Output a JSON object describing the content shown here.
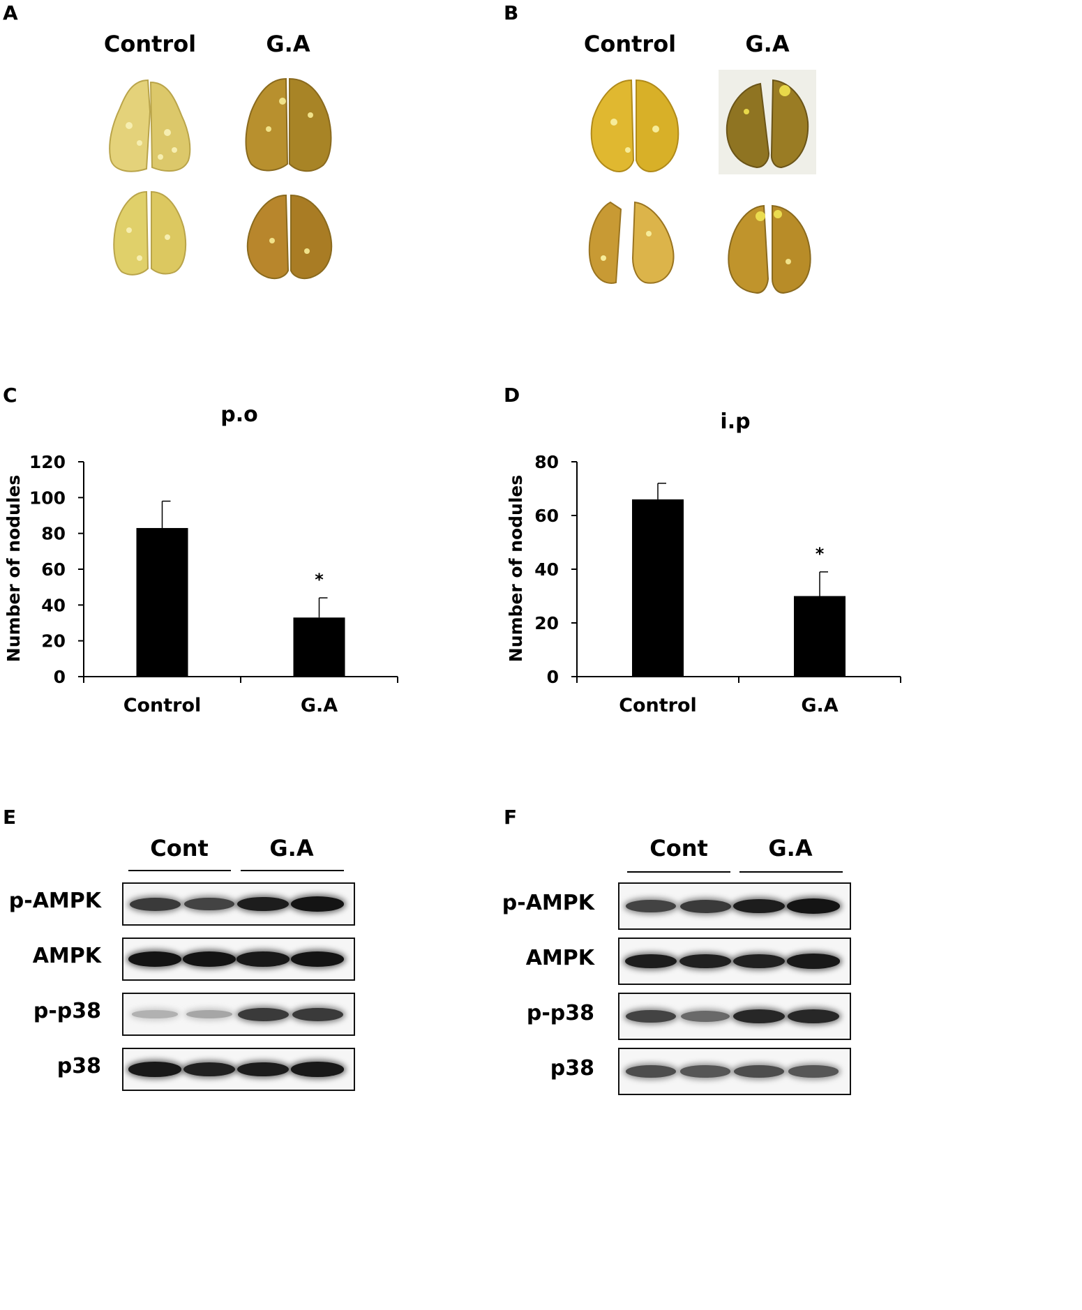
{
  "panels": {
    "A": {
      "letter": "A",
      "col1": "Control",
      "col2": "G.A"
    },
    "B": {
      "letter": "B",
      "col1": "Control",
      "col2": "G.A"
    },
    "C": {
      "letter": "C"
    },
    "D": {
      "letter": "D"
    },
    "E": {
      "letter": "E",
      "group1": "Cont",
      "group2": "G.A",
      "rows": [
        {
          "label": "p-AMPK",
          "intensity": [
            0.75,
            0.7,
            0.9,
            0.95
          ]
        },
        {
          "label": "AMPK",
          "intensity": [
            0.95,
            0.95,
            0.92,
            0.95
          ]
        },
        {
          "label": "p-p38",
          "intensity": [
            0.12,
            0.18,
            0.75,
            0.75
          ]
        },
        {
          "label": "p38",
          "intensity": [
            0.92,
            0.88,
            0.9,
            0.92
          ]
        }
      ]
    },
    "F": {
      "letter": "F",
      "group1": "Cont",
      "group2": "G.A",
      "rows": [
        {
          "label": "p-AMPK",
          "intensity": [
            0.7,
            0.75,
            0.9,
            0.95
          ]
        },
        {
          "label": "AMPK",
          "intensity": [
            0.9,
            0.88,
            0.88,
            0.92
          ]
        },
        {
          "label": "p-p38",
          "intensity": [
            0.7,
            0.5,
            0.85,
            0.85
          ]
        },
        {
          "label": "p38",
          "intensity": [
            0.65,
            0.6,
            0.65,
            0.6
          ]
        }
      ]
    }
  },
  "colors": {
    "bar": "#000000",
    "lung_control": "#d8c25a",
    "lung_ga": "#a07d2a",
    "nodule": "#f3ea9a"
  },
  "chart_data": [
    {
      "panel": "C",
      "type": "bar",
      "title": "p.o",
      "ylabel": "Number of nodules",
      "xlabel": "",
      "categories": [
        "Control",
        "G.A"
      ],
      "values": [
        83,
        33
      ],
      "errors": [
        15,
        11
      ],
      "annotations": [
        "",
        "*"
      ],
      "ylim": [
        0,
        120
      ],
      "yticks": [
        "0",
        "20",
        "40",
        "60",
        "80",
        "100",
        "120"
      ],
      "grid": false
    },
    {
      "panel": "D",
      "type": "bar",
      "title": "i.p",
      "ylabel": "Number of nodules",
      "xlabel": "",
      "categories": [
        "Control",
        "G.A"
      ],
      "values": [
        66,
        30
      ],
      "errors": [
        6,
        9
      ],
      "annotations": [
        "",
        "*"
      ],
      "ylim": [
        0,
        80
      ],
      "yticks": [
        "0",
        "20",
        "40",
        "60",
        "80"
      ],
      "grid": false
    }
  ]
}
